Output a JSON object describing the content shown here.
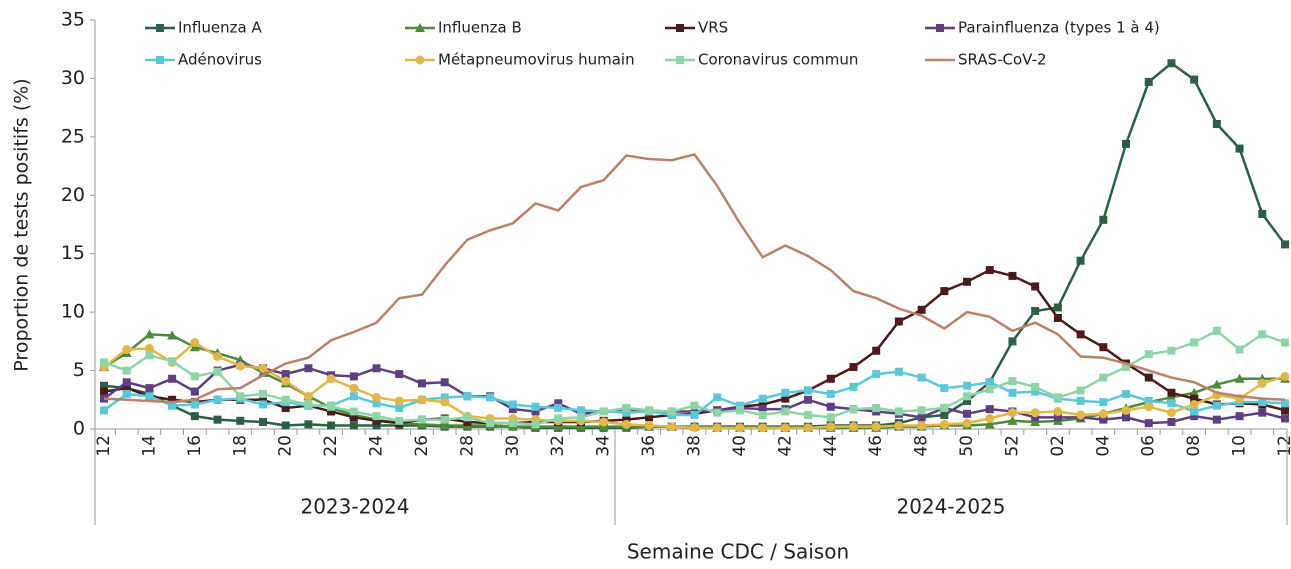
{
  "chart_data": {
    "type": "line",
    "y_axis_label": "Proportion de tests positifs (%)",
    "x_axis_label": "Semaine CDC / Saison",
    "categories": [
      "12",
      null,
      "14",
      null,
      "16",
      null,
      "18",
      null,
      "20",
      null,
      "22",
      null,
      "24",
      null,
      "26",
      null,
      "28",
      null,
      "30",
      null,
      "32",
      null,
      "34",
      null,
      "36",
      null,
      "38",
      null,
      "40",
      null,
      "42",
      null,
      "44",
      null,
      "46",
      null,
      "48",
      null,
      "50",
      null,
      "52",
      null,
      "02",
      null,
      "04",
      null,
      "06",
      null,
      "08",
      null,
      "10",
      null,
      "12"
    ],
    "groups": [
      {
        "label": "2023-2024",
        "size": 23
      },
      {
        "label": "2024-2025",
        "size": 30
      }
    ],
    "ylim": [
      0,
      35
    ],
    "yticks": [
      0,
      5,
      10,
      15,
      20,
      25,
      30,
      35
    ],
    "legend": "top",
    "series": [
      {
        "name": "Influenza A",
        "color": "#2e5e45",
        "marker": "square",
        "values": [
          3.7,
          3.5,
          3.0,
          2.0,
          1.1,
          0.8,
          0.7,
          0.6,
          0.3,
          0.4,
          0.3,
          0.3,
          0.3,
          0.3,
          0.3,
          0.2,
          0.2,
          0.2,
          0.2,
          0.1,
          0.1,
          0.1,
          0.1,
          0.1,
          0.2,
          0.2,
          0.2,
          0.2,
          0.2,
          0.2,
          0.2,
          0.2,
          0.3,
          0.3,
          0.3,
          0.5,
          1.0,
          1.2,
          2.4,
          4.0,
          7.5,
          10.1,
          10.4,
          14.4,
          17.9,
          24.4,
          29.7,
          31.3,
          29.9,
          26.1,
          24.0,
          18.4,
          15.8
        ]
      },
      {
        "name": "Influenza B",
        "color": "#4e8a3a",
        "marker": "triangle",
        "values": [
          5.3,
          6.5,
          8.1,
          8.0,
          7.0,
          6.5,
          5.9,
          4.8,
          3.9,
          2.8,
          1.8,
          1.2,
          0.8,
          0.5,
          0.4,
          0.3,
          0.3,
          0.3,
          0.2,
          0.2,
          0.2,
          0.2,
          0.2,
          0.2,
          0.2,
          0.2,
          0.2,
          0.1,
          0.1,
          0.1,
          0.1,
          0.1,
          0.1,
          0.1,
          0.1,
          0.2,
          0.2,
          0.3,
          0.3,
          0.4,
          0.7,
          0.6,
          0.7,
          0.9,
          1.3,
          1.8,
          2.3,
          2.7,
          3.1,
          3.8,
          4.3,
          4.3,
          4.3
        ]
      },
      {
        "name": "VRS",
        "color": "#4a1c1c",
        "marker": "square",
        "values": [
          3.2,
          3.5,
          2.8,
          2.5,
          2.3,
          2.5,
          2.5,
          2.5,
          1.8,
          2.0,
          1.5,
          1.0,
          0.7,
          0.5,
          0.8,
          0.9,
          0.6,
          0.5,
          0.5,
          0.6,
          0.6,
          0.6,
          0.7,
          0.8,
          1.0,
          1.2,
          1.3,
          1.6,
          1.9,
          2.1,
          2.6,
          3.3,
          4.3,
          5.3,
          6.7,
          9.2,
          10.2,
          11.8,
          12.6,
          13.6,
          13.1,
          12.2,
          9.5,
          8.1,
          7.0,
          5.6,
          4.4,
          3.1,
          2.6,
          2.1,
          2.2,
          2.1,
          1.6
        ]
      },
      {
        "name": "Parainfluenza (types 1 à 4)",
        "color": "#5e3f7f",
        "marker": "square",
        "values": [
          2.6,
          4.0,
          3.5,
          4.3,
          3.2,
          5.0,
          5.5,
          5.2,
          4.7,
          5.2,
          4.6,
          4.5,
          5.2,
          4.7,
          3.9,
          4.0,
          2.8,
          2.8,
          1.7,
          1.5,
          2.2,
          1.3,
          1.5,
          1.7,
          1.5,
          1.5,
          1.5,
          1.6,
          1.8,
          1.7,
          1.7,
          2.5,
          1.9,
          1.7,
          1.5,
          1.3,
          1.0,
          1.8,
          1.3,
          1.7,
          1.5,
          1.0,
          1.0,
          1.0,
          0.8,
          1.0,
          0.5,
          0.6,
          1.1,
          0.8,
          1.1,
          1.4,
          0.9
        ]
      },
      {
        "name": "Adénovirus",
        "color": "#5bc8d8",
        "marker": "square",
        "values": [
          1.6,
          3.0,
          2.8,
          2.0,
          2.1,
          2.5,
          2.6,
          2.1,
          2.3,
          2.0,
          2.0,
          2.8,
          2.2,
          1.8,
          2.5,
          2.7,
          2.8,
          2.7,
          2.1,
          1.9,
          1.8,
          1.6,
          1.5,
          1.4,
          1.5,
          1.2,
          1.2,
          2.7,
          2.0,
          2.6,
          3.1,
          3.3,
          3.0,
          3.6,
          4.7,
          4.9,
          4.4,
          3.5,
          3.7,
          4.0,
          3.1,
          3.2,
          2.6,
          2.4,
          2.3,
          3.0,
          2.4,
          2.2,
          1.5,
          2.0,
          2.3,
          2.3,
          2.2
        ]
      },
      {
        "name": "Métapneumovirus humain",
        "color": "#e0b84a",
        "marker": "circle",
        "values": [
          5.3,
          6.8,
          6.9,
          5.7,
          7.4,
          6.2,
          5.4,
          5.2,
          4.1,
          2.8,
          4.3,
          3.5,
          2.7,
          2.4,
          2.5,
          2.3,
          1.1,
          0.9,
          0.9,
          0.8,
          0.7,
          0.7,
          0.6,
          0.4,
          0.3,
          0.2,
          0.1,
          0.1,
          0.1,
          0.1,
          0.1,
          0.1,
          0.2,
          0.2,
          0.2,
          0.3,
          0.3,
          0.4,
          0.5,
          0.9,
          1.4,
          1.4,
          1.5,
          1.2,
          1.3,
          1.6,
          1.9,
          1.4,
          2.1,
          2.9,
          2.6,
          3.9,
          4.5
        ]
      },
      {
        "name": "Coronavirus commun",
        "color": "#8fd4a8",
        "marker": "square",
        "values": [
          5.7,
          5.0,
          6.3,
          5.8,
          4.5,
          4.9,
          2.8,
          3.0,
          2.5,
          2.1,
          1.9,
          1.5,
          1.1,
          0.7,
          0.8,
          0.8,
          1.0,
          0.5,
          0.5,
          0.4,
          0.9,
          1.0,
          1.5,
          1.8,
          1.6,
          1.5,
          2.0,
          1.4,
          1.6,
          1.2,
          1.5,
          1.2,
          1.0,
          1.7,
          1.8,
          1.5,
          1.6,
          1.8,
          2.8,
          3.4,
          4.1,
          3.6,
          2.7,
          3.3,
          4.4,
          5.3,
          6.4,
          6.7,
          7.4,
          8.4,
          6.8,
          8.1,
          7.4
        ]
      },
      {
        "name": "SRAS-CoV-2",
        "color": "#b9826a",
        "marker": "none",
        "values": [
          2.6,
          2.5,
          2.4,
          2.3,
          2.5,
          3.4,
          3.5,
          4.6,
          5.6,
          6.1,
          7.6,
          8.3,
          9.1,
          11.2,
          11.5,
          14.0,
          16.2,
          17.0,
          17.6,
          19.3,
          18.7,
          20.7,
          21.3,
          23.4,
          23.1,
          23.0,
          23.5,
          20.8,
          17.6,
          14.7,
          15.7,
          14.8,
          13.6,
          11.8,
          11.2,
          10.3,
          9.7,
          8.6,
          10.0,
          9.6,
          8.4,
          9.1,
          8.1,
          6.2,
          6.1,
          5.6,
          5.0,
          4.4,
          4.0,
          3.1,
          2.8,
          2.6,
          2.5
        ]
      }
    ]
  }
}
